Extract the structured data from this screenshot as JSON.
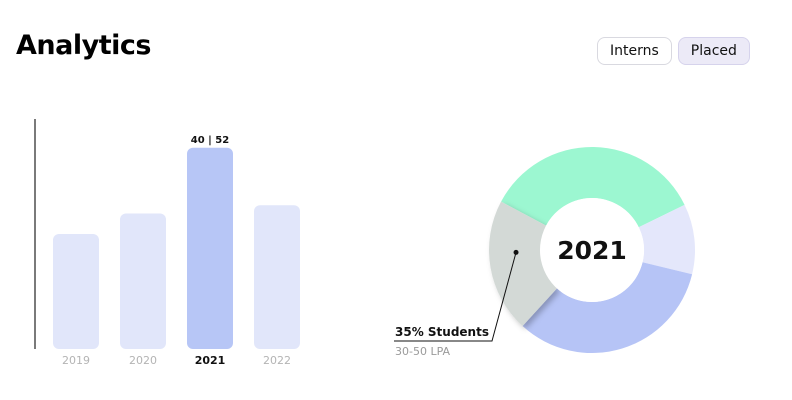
{
  "header": {
    "title": "Analytics",
    "toggle": {
      "options": [
        "Interns",
        "Placed"
      ],
      "selected": "Placed"
    }
  },
  "chart_data": [
    {
      "type": "bar",
      "categories": [
        "2019",
        "2020",
        "2021",
        "2022"
      ],
      "values": [
        28,
        33,
        49,
        35
      ],
      "highlighted": "2021",
      "data_labels": {
        "2021": "40 | 52"
      },
      "ylim": [
        0,
        56
      ],
      "grid": false,
      "colors": {
        "default": "#e1e6fa",
        "highlight": "#b7c6f6",
        "axis": "#222222"
      }
    },
    {
      "type": "pie",
      "style": "donut",
      "center_label": "2021",
      "slices": [
        {
          "value": 35,
          "color": "#9cf7d1"
        },
        {
          "value": 11,
          "color": "#e4e7fb"
        },
        {
          "value": 33,
          "color": "#b6c4f6"
        },
        {
          "value": 21,
          "color": "#d3d9d6"
        }
      ],
      "annotation": {
        "label": "35% Students",
        "sublabel": "30-50 LPA"
      }
    }
  ]
}
